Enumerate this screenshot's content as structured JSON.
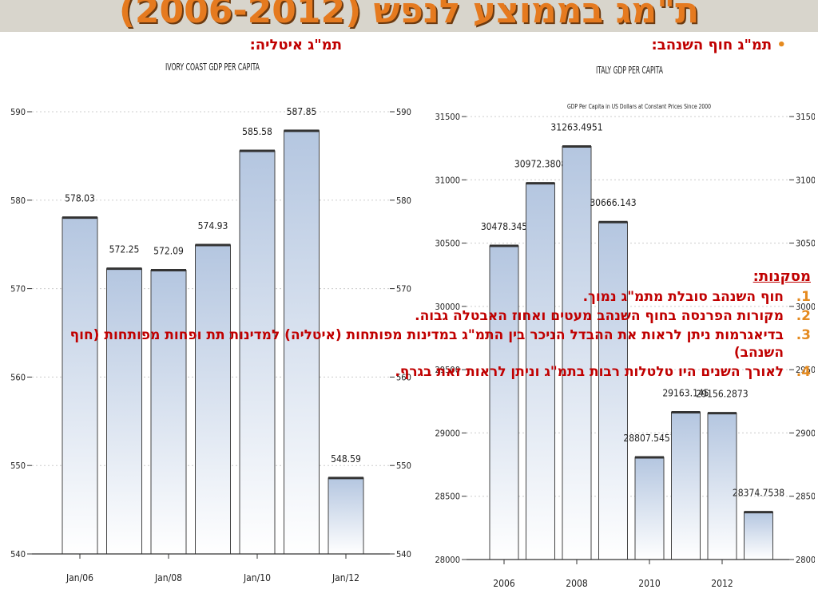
{
  "slide": {
    "title": "ת\"מג בממוצע לנפש (2006-2012)",
    "heading_right": "תמ\"ג חוף השנהב:",
    "heading_left": "תמ\"ג איטליה:",
    "bullet": "•"
  },
  "conclusions": {
    "title": "מסקנות:",
    "items": [
      {
        "num": "1.",
        "text": "חוף השנהב סובלת מתמ\"ג נמוך."
      },
      {
        "num": "2.",
        "text": "מקורות הפרנסה בחוף השנהב מעטים ואחוז האבטלה גבוה."
      },
      {
        "num": "3.",
        "text": "בדיאגרמות ניתן לראות את ההבדל הניכר בין התמ\"ג במדינות מפותחות (איטליה) למדינות תת ופחות מפותחות (חוף השנהב)"
      },
      {
        "num": "4.",
        "text": "לאורך השנים היו טלטלות רבות בתמ\"ג וניתן לראות זאת בגרף."
      }
    ]
  },
  "chart_data": [
    {
      "type": "bar",
      "title": "IVORY COAST GDP PER CAPITA",
      "subtitle": "",
      "categories": [
        "2006",
        "2007",
        "2008",
        "2009",
        "2010",
        "2011",
        "2012"
      ],
      "values": [
        578.03,
        572.25,
        572.09,
        574.93,
        585.58,
        587.85,
        548.59
      ],
      "value_labels": [
        "578.03",
        "572.25",
        "572.09",
        "574.93",
        "585.58",
        "587.85",
        "548.59"
      ],
      "x_tick_labels": [
        {
          "index": 0,
          "label": "Jan/06"
        },
        {
          "index": 2,
          "label": "Jan/08"
        },
        {
          "index": 4,
          "label": "Jan/10"
        },
        {
          "index": 6,
          "label": "Jan/12"
        }
      ],
      "ylim": [
        540,
        590
      ],
      "y_ticks": [
        540,
        550,
        560,
        570,
        580,
        590
      ],
      "grid": true,
      "bar_color": "#b4c6e0"
    },
    {
      "type": "bar",
      "title": "ITALY GDP PER CAPITA",
      "subtitle": "GDP Per Capita in US Dollars at Constant Prices Since 2000",
      "categories": [
        "2006",
        "2007",
        "2008",
        "2009",
        "2010",
        "2011",
        "2012"
      ],
      "values": [
        30478.345,
        30972.3808,
        31263.4951,
        30666.143,
        28807.5457,
        29163.145,
        29156.2873
      ],
      "value_labels": [
        "30478.345",
        "30972.3808",
        "31263.4951",
        "30666.143",
        "28807.5457",
        "29163.145",
        "29156.2873"
      ],
      "extra_values": [
        {
          "index": 7,
          "value": 28374.7538,
          "label": "28374.7538"
        }
      ],
      "x_tick_labels": [
        {
          "index": 0,
          "label": "2006"
        },
        {
          "index": 2,
          "label": "2008"
        },
        {
          "index": 4,
          "label": "2010"
        },
        {
          "index": 6,
          "label": "2012"
        }
      ],
      "ylim": [
        28000,
        31500
      ],
      "y_ticks": [
        28000,
        28500,
        29000,
        29500,
        30000,
        30500,
        31000,
        31500
      ],
      "grid": true,
      "bar_color": "#b4c6e0"
    }
  ]
}
